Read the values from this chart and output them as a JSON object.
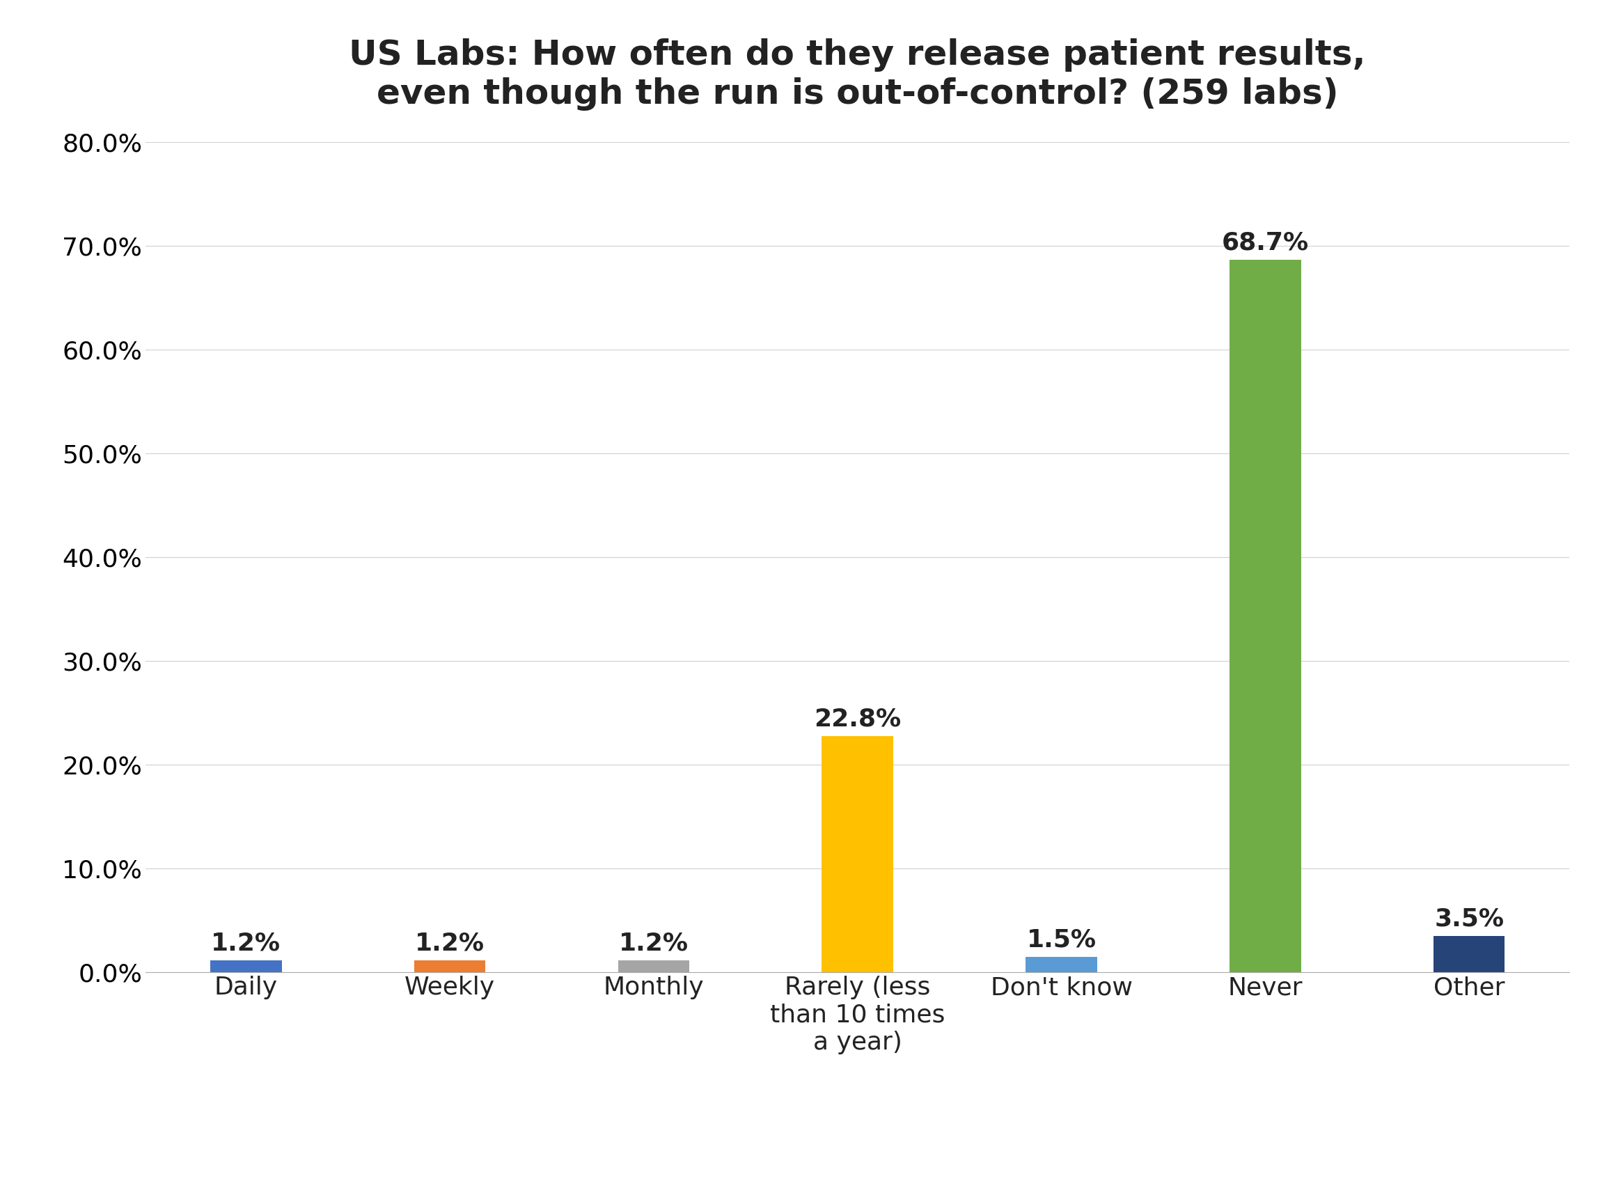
{
  "title": "US Labs: How often do they release patient results,\neven though the run is out-of-control? (259 labs)",
  "categories": [
    "Daily",
    "Weekly",
    "Monthly",
    "Rarely (less\nthan 10 times\na year)",
    "Don't know",
    "Never",
    "Other"
  ],
  "values": [
    1.2,
    1.2,
    1.2,
    22.8,
    1.5,
    68.7,
    3.5
  ],
  "bar_colors": [
    "#4472C4",
    "#ED7D31",
    "#A5A5A5",
    "#FFC000",
    "#5B9BD5",
    "#70AD47",
    "#264478"
  ],
  "ylim": [
    0,
    80
  ],
  "yticks": [
    0,
    10,
    20,
    30,
    40,
    50,
    60,
    70,
    80
  ],
  "background_color": "#FFFFFF",
  "grid_color": "#D0D0D0",
  "title_fontsize": 36,
  "tick_fontsize": 26,
  "bar_label_fontsize": 26
}
